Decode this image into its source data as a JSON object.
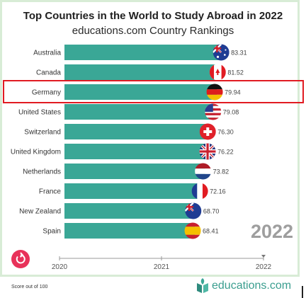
{
  "page": {
    "title": "Top Countries in the World to Study Abroad in 2022",
    "subtitle": "educations.com Country Rankings",
    "current_year": "2022",
    "footnote": "Score out of 100",
    "brand": "educations.com"
  },
  "colors": {
    "bar": "#3aa796",
    "frame_border": "#d8ecd6",
    "highlight": "#e11b22",
    "year_text": "#9e9e9e",
    "replay_button": "#e8325a",
    "brand": "#3a9e8f"
  },
  "highlighted_category": "Germany",
  "timeline": {
    "ticks": [
      "2020",
      "2021",
      "2022"
    ],
    "current": "2022"
  },
  "chart_data": {
    "type": "bar",
    "orientation": "horizontal",
    "title": "Top Countries in the World to Study Abroad in 2022",
    "subtitle": "educations.com Country Rankings",
    "categories": [
      "Australia",
      "Canada",
      "Germany",
      "United States",
      "Switzerland",
      "United Kingdom",
      "Netherlands",
      "France",
      "New Zealand",
      "Spain"
    ],
    "values": [
      83.31,
      81.52,
      79.94,
      79.08,
      76.3,
      76.22,
      73.82,
      72.16,
      68.7,
      68.41
    ],
    "value_labels": [
      "83.31",
      "81.52",
      "79.94",
      "79.08",
      "76.30",
      "76.22",
      "73.82",
      "72.16",
      "68.70",
      "68.41"
    ],
    "flags": [
      "australia-flag-icon",
      "canada-flag-icon",
      "germany-flag-icon",
      "usa-flag-icon",
      "switzerland-flag-icon",
      "uk-flag-icon",
      "netherlands-flag-icon",
      "france-flag-icon",
      "new-zealand-flag-icon",
      "spain-flag-icon"
    ],
    "xlim": [
      0,
      84
    ],
    "grid": false,
    "legend": "none",
    "xlabel": "",
    "ylabel": ""
  }
}
